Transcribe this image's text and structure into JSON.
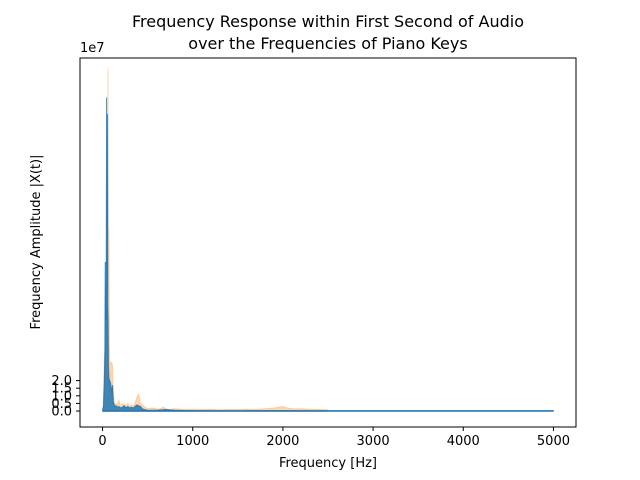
{
  "chart_data": {
    "type": "area",
    "title_line1": "Frequency Response within First Second of Audio",
    "title_line2": "over the Frequencies of Piano Keys",
    "xlabel": "Frequency [Hz]",
    "ylabel": "Frequency Amplitude |X(t)|",
    "y_offset_text": "1e7",
    "xlim": [
      -250,
      5250
    ],
    "ylim": [
      -1.05,
      23.2
    ],
    "y_units_multiplier": 10000000,
    "x_ticks": [
      0,
      1000,
      2000,
      3000,
      4000,
      5000
    ],
    "x_tick_labels": [
      "0",
      "1000",
      "2000",
      "3000",
      "4000",
      "5000"
    ],
    "y_ticks": [
      0.0,
      0.5,
      1.0,
      1.5,
      2.0
    ],
    "y_tick_labels": [
      "0.0",
      "0.5",
      "1.0",
      "1.5",
      "2.0"
    ],
    "grid": false,
    "series": [
      {
        "color": "#ffbb78",
        "opacity": 0.6,
        "x": [
          0,
          10,
          20,
          28,
          35,
          42,
          50,
          55,
          60,
          65,
          70,
          75,
          80,
          85,
          90,
          100,
          110,
          120,
          130,
          140,
          150,
          160,
          180,
          200,
          220,
          240,
          260,
          280,
          300,
          320,
          340,
          360,
          380,
          400,
          420,
          440,
          460,
          500,
          560,
          620,
          680,
          700,
          740,
          800,
          900,
          1000,
          1100,
          1200,
          1300,
          1400,
          1500,
          1600,
          1700,
          1800,
          1900,
          1950,
          2000,
          2050,
          2100,
          2200,
          2300,
          2400,
          2500
        ],
        "y": [
          0.05,
          0.4,
          3.8,
          2.0,
          8.2,
          6.0,
          11.8,
          3.5,
          22.5,
          8.0,
          12.0,
          4.5,
          3.2,
          1.8,
          3.2,
          3.2,
          3.0,
          1.2,
          0.6,
          0.4,
          0.5,
          0.35,
          0.7,
          0.3,
          0.5,
          0.45,
          0.3,
          0.5,
          0.3,
          0.4,
          0.3,
          0.5,
          0.9,
          1.1,
          0.5,
          0.4,
          0.3,
          0.15,
          0.2,
          0.12,
          0.25,
          0.15,
          0.1,
          0.15,
          0.1,
          0.12,
          0.1,
          0.12,
          0.08,
          0.1,
          0.1,
          0.12,
          0.1,
          0.15,
          0.2,
          0.25,
          0.3,
          0.2,
          0.15,
          0.15,
          0.12,
          0.1,
          0.08
        ]
      },
      {
        "color": "#1f77b4",
        "opacity": 0.85,
        "x": [
          0,
          10,
          20,
          26,
          30,
          35,
          40,
          45,
          50,
          55,
          58,
          62,
          65,
          70,
          75,
          80,
          90,
          100,
          110,
          120,
          130,
          140,
          150,
          160,
          180,
          200,
          220,
          240,
          260,
          280,
          300,
          320,
          340,
          360,
          380,
          400,
          420,
          440,
          460,
          500,
          600,
          700,
          800,
          1000,
          1500,
          2000,
          2500,
          3000,
          3500,
          4000,
          4500,
          5000
        ],
        "y": [
          0.02,
          0.3,
          2.0,
          4.0,
          9.8,
          8.0,
          6.0,
          20.6,
          12.0,
          19.5,
          7.0,
          5.8,
          3.0,
          2.2,
          2.0,
          2.0,
          1.8,
          1.2,
          1.7,
          0.6,
          0.4,
          0.3,
          0.35,
          0.25,
          0.3,
          0.2,
          0.25,
          0.35,
          0.2,
          0.3,
          0.2,
          0.25,
          0.2,
          0.3,
          0.4,
          0.35,
          0.3,
          0.15,
          0.1,
          0.05,
          0.05,
          0.1,
          0.05,
          0.03,
          0.02,
          0.03,
          0.02,
          0.02,
          0.02,
          0.02,
          0.02,
          0.02
        ]
      }
    ]
  }
}
